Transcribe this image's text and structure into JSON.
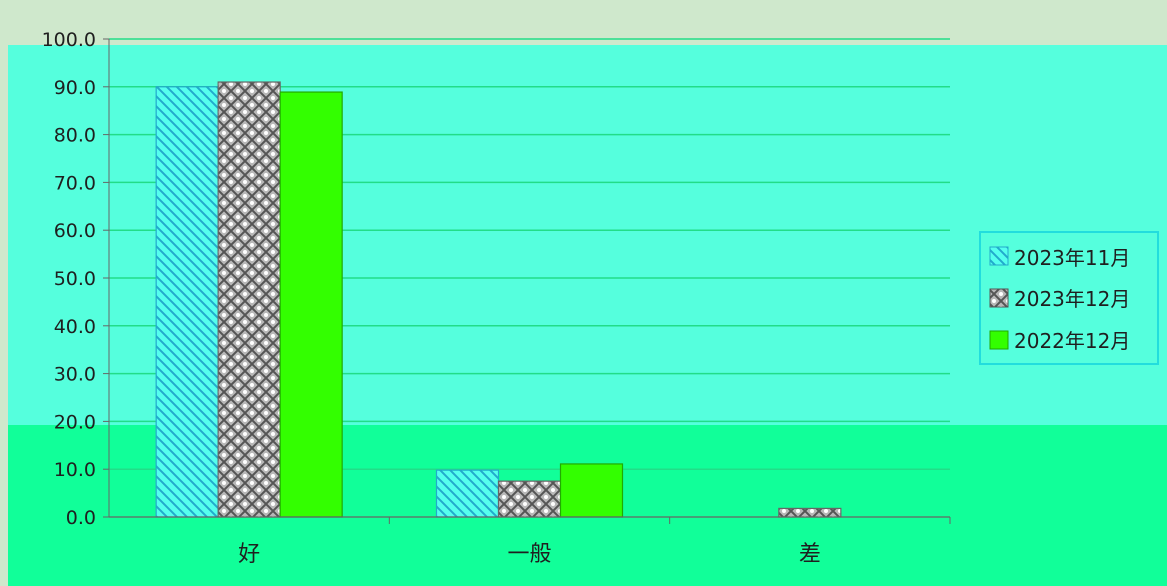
{
  "chart_data": {
    "type": "bar",
    "title": "",
    "xlabel": "",
    "ylabel": "",
    "categories": [
      "好",
      "一般",
      "差"
    ],
    "y_ticks": [
      "0.0",
      "10.0",
      "20.0",
      "30.0",
      "40.0",
      "50.0",
      "60.0",
      "70.0",
      "80.0",
      "90.0",
      "100.0"
    ],
    "ylim": [
      0,
      100
    ],
    "grid": true,
    "legend_position": "right",
    "series": [
      {
        "name": "2023年11月",
        "values": [
          90.0,
          9.8,
          0.0
        ],
        "color": "#33ccdd",
        "pattern": "diagonal"
      },
      {
        "name": "2023年12月",
        "values": [
          91.0,
          7.5,
          1.8
        ],
        "color": "#a0a0a0",
        "pattern": "crosshatch"
      },
      {
        "name": "2022年12月",
        "values": [
          88.9,
          11.1,
          0.0
        ],
        "color": "#33ff00",
        "pattern": "solid"
      }
    ]
  },
  "colors": {
    "background_top": "#cfe8cc",
    "plot_panel": "#55ffdd",
    "bottom_band": "#11ff99",
    "gridline": "#22dd88"
  }
}
